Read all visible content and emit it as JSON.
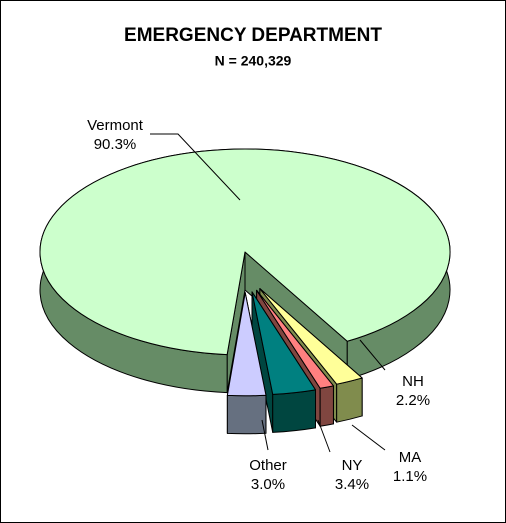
{
  "chart_data": {
    "type": "pie3d",
    "title": "EMERGENCY DEPARTMENT",
    "subtitle": "N = 240,329",
    "categories": [
      "Vermont",
      "NH",
      "MA",
      "NY",
      "Other"
    ],
    "values": [
      90.3,
      2.2,
      1.1,
      3.4,
      3.0
    ],
    "value_labels": [
      "90.3%",
      "2.2%",
      "1.1%",
      "3.4%",
      "3.0%"
    ],
    "colors": [
      "#ccffcc",
      "#ffff99",
      "#ff8080",
      "#008080",
      "#ccccff"
    ]
  }
}
